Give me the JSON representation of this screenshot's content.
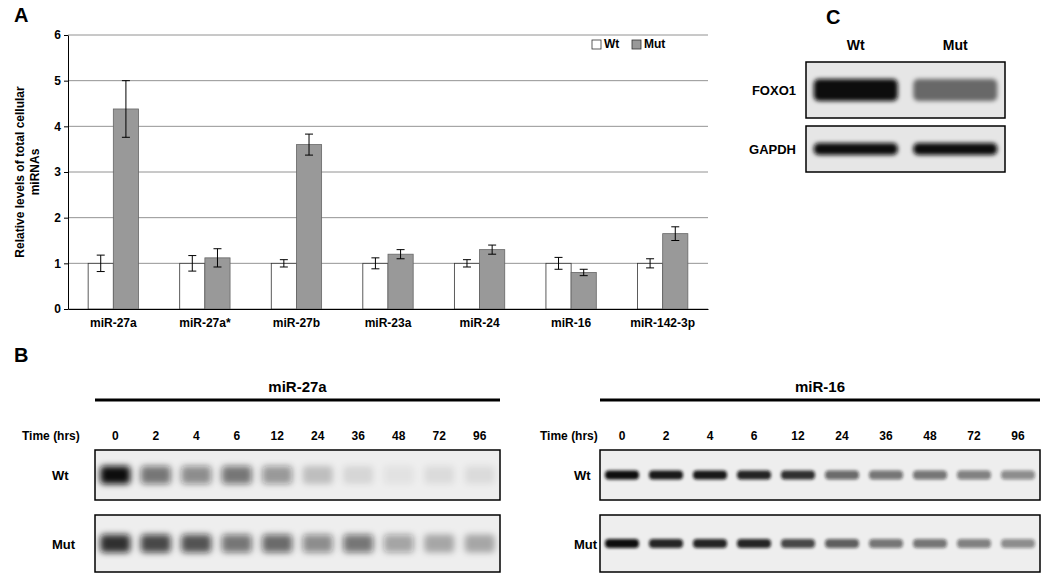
{
  "panel_labels": [
    "A",
    "B",
    "C"
  ],
  "chart_data": {
    "type": "bar",
    "y_label": "Relative levels of total cellular miRNAs",
    "categories": [
      "miR-27a",
      "miR-27a*",
      "miR-27b",
      "miR-23a",
      "miR-24",
      "miR-16",
      "miR-142-3p"
    ],
    "series": [
      {
        "name": "Wt",
        "color": "#ffffff",
        "values": [
          1,
          1,
          1,
          1,
          1,
          1,
          1
        ],
        "errors": [
          0.18,
          0.17,
          0.08,
          0.12,
          0.08,
          0.13,
          0.1
        ]
      },
      {
        "name": "Mut",
        "color": "#999999",
        "values": [
          4.38,
          1.12,
          3.6,
          1.2,
          1.3,
          0.8,
          1.65
        ],
        "errors": [
          0.62,
          0.2,
          0.23,
          0.1,
          0.1,
          0.07,
          0.15
        ]
      }
    ],
    "ylim": [
      0,
      6
    ],
    "yticks": [
      0,
      1,
      2,
      3,
      4,
      5,
      6
    ],
    "grid": true,
    "legend": "top-right"
  },
  "blots": {
    "time_label": "Time (hrs)",
    "times": [
      0,
      2,
      4,
      6,
      12,
      24,
      36,
      48,
      72,
      96
    ],
    "panels": [
      {
        "title": "miR-27a",
        "rows": [
          {
            "label": "Wt",
            "intensity": [
              1.0,
              0.55,
              0.45,
              0.55,
              0.4,
              0.2,
              0.1,
              0.05,
              0.08,
              0.08
            ]
          },
          {
            "label": "Mut",
            "intensity": [
              0.85,
              0.75,
              0.7,
              0.55,
              0.6,
              0.45,
              0.55,
              0.35,
              0.3,
              0.3
            ]
          }
        ]
      },
      {
        "title": "miR-16",
        "rows": [
          {
            "label": "Wt",
            "intensity": [
              1.0,
              0.95,
              0.95,
              0.9,
              0.85,
              0.6,
              0.55,
              0.55,
              0.5,
              0.45
            ]
          },
          {
            "label": "Mut",
            "intensity": [
              1.0,
              0.9,
              0.9,
              0.9,
              0.75,
              0.65,
              0.55,
              0.55,
              0.5,
              0.45
            ]
          }
        ]
      }
    ]
  },
  "western_blot": {
    "columns": [
      "Wt",
      "Mut"
    ],
    "rows": [
      {
        "label": "FOXO1",
        "intensity": [
          1.0,
          0.55
        ]
      },
      {
        "label": "GAPDH",
        "intensity": [
          1.0,
          1.0
        ]
      }
    ]
  }
}
